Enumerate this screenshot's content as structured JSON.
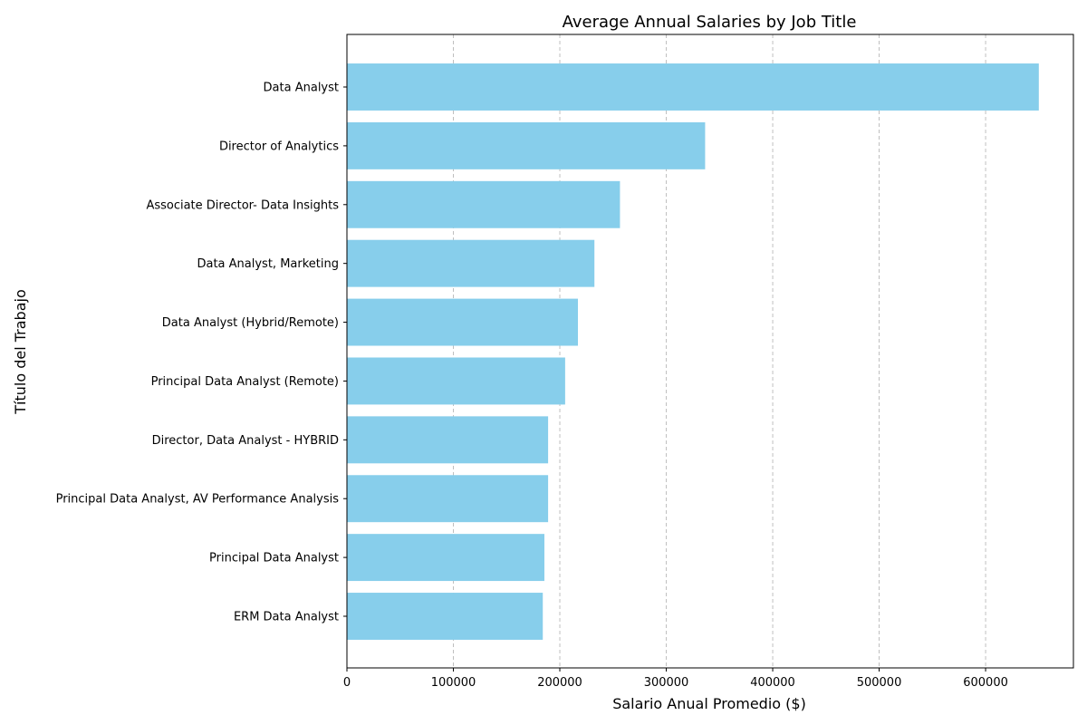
{
  "chart_data": {
    "type": "bar",
    "orientation": "horizontal",
    "title": "Average Annual Salaries by Job Title",
    "xlabel": "Salario Anual Promedio ($)",
    "ylabel": "Título del Trabajo",
    "categories": [
      "Data Analyst",
      "Director of Analytics",
      "Associate Director- Data Insights",
      "Data Analyst, Marketing",
      "Data Analyst (Hybrid/Remote)",
      "Principal Data Analyst (Remote)",
      "Director, Data Analyst - HYBRID",
      "Principal Data Analyst, AV Performance Analysis",
      "Principal Data Analyst",
      "ERM Data Analyst"
    ],
    "values": [
      650000,
      336500,
      256500,
      232500,
      217000,
      205000,
      189000,
      189000,
      185500,
      184000
    ],
    "xlim": [
      0,
      682500
    ],
    "xticks": [
      0,
      100000,
      200000,
      300000,
      400000,
      500000,
      600000
    ],
    "xtick_labels": [
      "0",
      "100000",
      "200000",
      "300000",
      "400000",
      "500000",
      "600000"
    ],
    "grid": "x-axis dashed",
    "bar_color": "#87ceeb"
  }
}
